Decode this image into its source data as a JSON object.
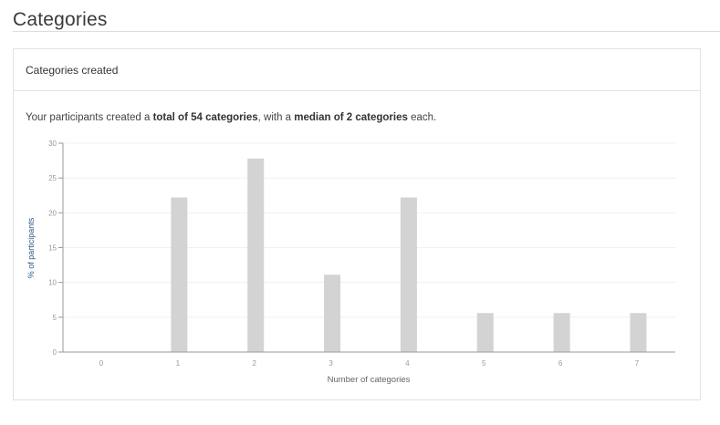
{
  "page_title": "Categories",
  "card": {
    "title": "Categories created",
    "summary": {
      "prefix": "Your participants created a ",
      "total_phrase": "total of 54 categories",
      "middle": ", with a ",
      "median_phrase": "median of 2 categories",
      "suffix": " each."
    }
  },
  "colors": {
    "bar": "#d3d3d3",
    "axis_label": "#2e5a88",
    "tick": "#999999"
  },
  "chart_data": {
    "type": "bar",
    "categories": [
      "0",
      "1",
      "2",
      "3",
      "4",
      "5",
      "6",
      "7"
    ],
    "values": [
      0,
      22.2,
      27.8,
      11.1,
      22.2,
      5.6,
      5.6,
      5.6
    ],
    "xlabel": "Number of categories",
    "ylabel": "% of participants",
    "ylim": [
      0,
      30
    ],
    "yticks": [
      0,
      5,
      10,
      15,
      20,
      25,
      30
    ],
    "grid": true
  }
}
